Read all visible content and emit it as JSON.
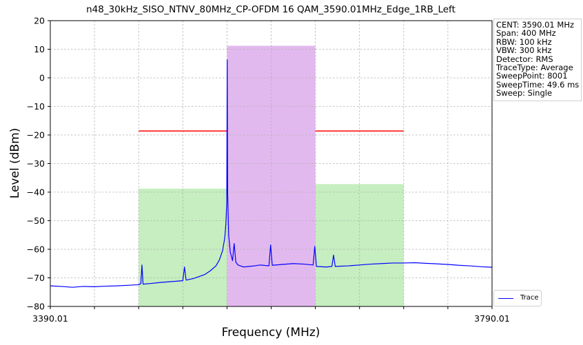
{
  "chart_data": {
    "type": "line",
    "title": "n48_30kHz_SISO_NTNV_80MHz_CP-OFDM 16 QAM_3590.01MHz_Edge_1RB_Left",
    "xlabel": "Frequency (MHz)",
    "ylabel": "Level (dBm)",
    "xlim": [
      3390.01,
      3790.01
    ],
    "ylim": [
      -80,
      20
    ],
    "x_tick_labels": [
      "3390.01",
      "3790.01"
    ],
    "y_ticks": [
      20,
      10,
      0,
      -10,
      -20,
      -30,
      -40,
      -50,
      -60,
      -70,
      -80
    ],
    "y_tick_labels": [
      "20",
      "10",
      "0",
      "−10",
      "−20",
      "−30",
      "−40",
      "−50",
      "−60",
      "−70",
      "−80"
    ],
    "grid": true,
    "legend_position": "bottom-right",
    "regions": [
      {
        "kind": "adjacent-channel",
        "x_start": 3470.01,
        "x_end": 3550.01,
        "level": -38.8,
        "color": "#c6eec0"
      },
      {
        "kind": "main-channel",
        "x_start": 3550.01,
        "x_end": 3630.01,
        "level": 11.2,
        "color": "#e2b9ee"
      },
      {
        "kind": "adjacent-channel",
        "x_start": 3630.01,
        "x_end": 3710.01,
        "level": -37.2,
        "color": "#c6eec0"
      }
    ],
    "limit_lines": [
      {
        "x_start": 3470.01,
        "x_end": 3550.01,
        "y": -18.6,
        "color": "#ff0000"
      },
      {
        "x_start": 3630.01,
        "x_end": 3710.01,
        "y": -18.6,
        "color": "#ff0000"
      }
    ],
    "series": [
      {
        "name": "Trace",
        "color": "#0000ff",
        "points": [
          [
            3390.01,
            -72.8
          ],
          [
            3400.0,
            -73.0
          ],
          [
            3410.0,
            -73.3
          ],
          [
            3420.0,
            -73.0
          ],
          [
            3430.0,
            -73.1
          ],
          [
            3440.0,
            -72.9
          ],
          [
            3450.0,
            -72.8
          ],
          [
            3460.0,
            -72.6
          ],
          [
            3470.0,
            -72.4
          ],
          [
            3472.0,
            -72.0
          ],
          [
            3473.0,
            -65.5
          ],
          [
            3474.0,
            -72.2
          ],
          [
            3480.0,
            -72.0
          ],
          [
            3490.0,
            -71.6
          ],
          [
            3500.0,
            -71.3
          ],
          [
            3510.0,
            -71.0
          ],
          [
            3511.5,
            -66.2
          ],
          [
            3513.0,
            -70.8
          ],
          [
            3520.0,
            -70.2
          ],
          [
            3530.0,
            -68.8
          ],
          [
            3535.0,
            -67.5
          ],
          [
            3540.0,
            -65.8
          ],
          [
            3543.0,
            -63.8
          ],
          [
            3546.0,
            -60.5
          ],
          [
            3548.0,
            -56.0
          ],
          [
            3549.0,
            -51.0
          ],
          [
            3549.8,
            -44.0
          ],
          [
            3550.2,
            6.3
          ],
          [
            3550.6,
            -40.0
          ],
          [
            3551.5,
            -55.0
          ],
          [
            3553.0,
            -61.0
          ],
          [
            3555.0,
            -64.0
          ],
          [
            3556.5,
            -58.0
          ],
          [
            3558.0,
            -64.5
          ],
          [
            3560.0,
            -65.5
          ],
          [
            3565.0,
            -66.2
          ],
          [
            3570.0,
            -66.0
          ],
          [
            3575.0,
            -65.8
          ],
          [
            3580.0,
            -65.5
          ],
          [
            3588.0,
            -65.8
          ],
          [
            3589.5,
            -58.5
          ],
          [
            3591.0,
            -65.6
          ],
          [
            3600.0,
            -65.3
          ],
          [
            3610.0,
            -65.0
          ],
          [
            3620.0,
            -65.2
          ],
          [
            3628.0,
            -65.5
          ],
          [
            3629.5,
            -59.0
          ],
          [
            3631.0,
            -66.0
          ],
          [
            3640.0,
            -66.2
          ],
          [
            3645.0,
            -66.0
          ],
          [
            3646.5,
            -62.0
          ],
          [
            3648.0,
            -66.0
          ],
          [
            3660.0,
            -65.8
          ],
          [
            3670.0,
            -65.5
          ],
          [
            3680.0,
            -65.2
          ],
          [
            3690.0,
            -65.0
          ],
          [
            3700.0,
            -64.8
          ],
          [
            3710.0,
            -64.8
          ],
          [
            3720.0,
            -64.7
          ],
          [
            3730.0,
            -64.9
          ],
          [
            3740.0,
            -65.1
          ],
          [
            3750.0,
            -65.3
          ],
          [
            3760.0,
            -65.6
          ],
          [
            3770.0,
            -65.8
          ],
          [
            3780.0,
            -66.1
          ],
          [
            3790.01,
            -66.3
          ]
        ]
      }
    ]
  },
  "info": {
    "lines": [
      "CENT: 3590.01 MHz",
      "Span: 400 MHz",
      "RBW: 100 kHz",
      "VBW: 300 kHz",
      "Detector: RMS",
      "TraceType: Average",
      "SweepPoint: 8001",
      "SweepTime: 49.6 ms",
      "Sweep: Single"
    ]
  },
  "legend": {
    "label": "Trace"
  }
}
